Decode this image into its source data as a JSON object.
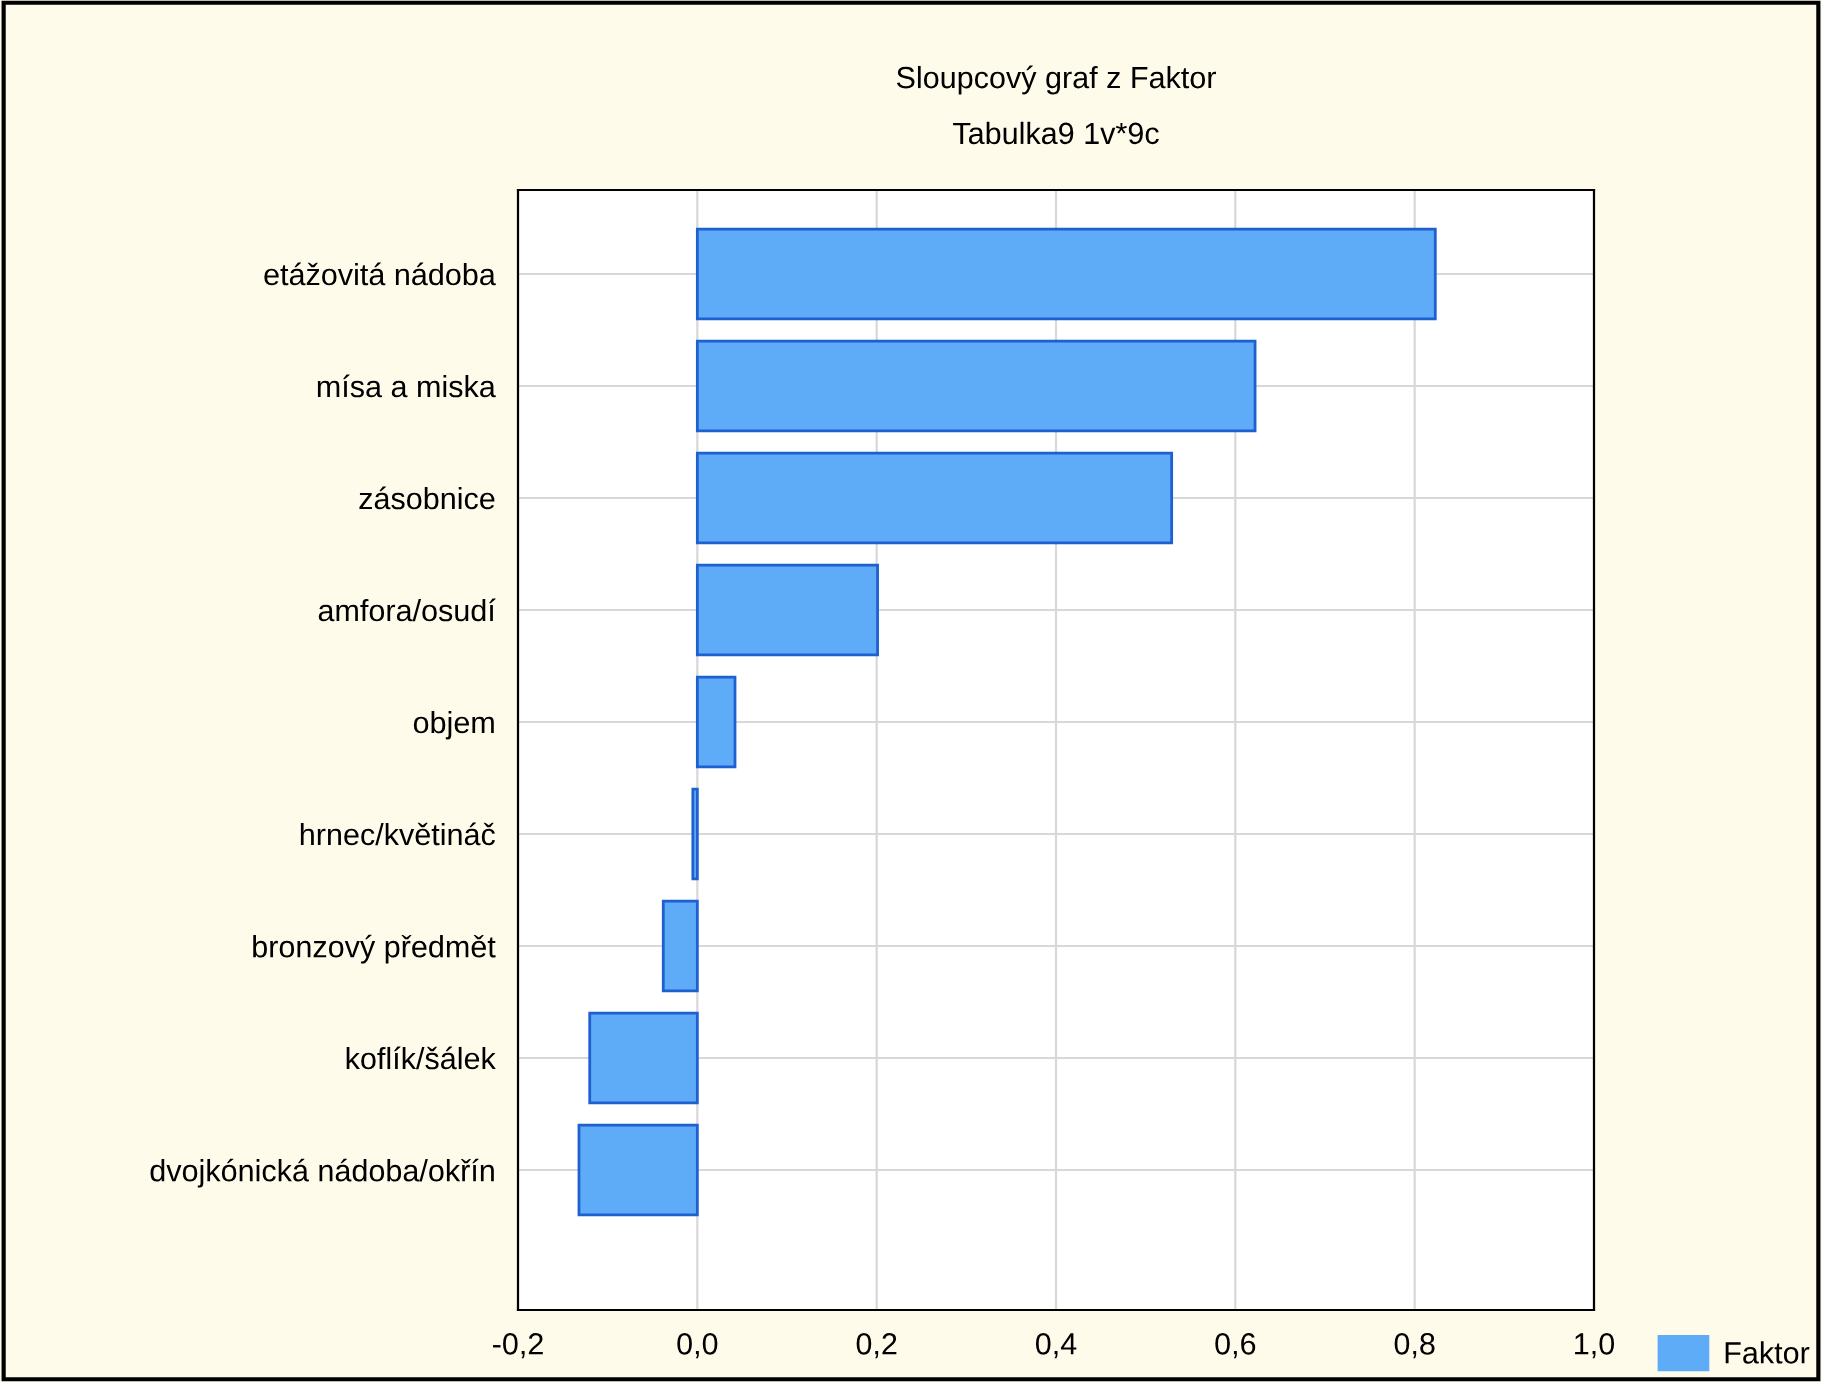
{
  "chart_data": {
    "type": "bar",
    "orientation": "horizontal",
    "title": "Sloupcový graf z Faktor",
    "subtitle": "Tabulka9 1v*9c",
    "categories": [
      "etážovitá nádoba",
      "mísa a miska",
      "zásobnice",
      "amfora/osudí",
      "objem",
      "hrnec/květináč",
      "bronzový předmět",
      "koflík/šálek",
      "dvojkónická nádoba/okřín"
    ],
    "series": [
      {
        "name": "Faktor",
        "color": "#5eacf7",
        "values": [
          0.823,
          0.622,
          0.529,
          0.201,
          0.042,
          -0.005,
          -0.038,
          -0.12,
          -0.132
        ]
      }
    ],
    "xlim": [
      -0.2,
      1.0
    ],
    "xticks": [
      {
        "value": -0.2,
        "label": "-0,2"
      },
      {
        "value": 0.0,
        "label": "0,0"
      },
      {
        "value": 0.2,
        "label": "0,2"
      },
      {
        "value": 0.4,
        "label": "0,4"
      },
      {
        "value": 0.6,
        "label": "0,6"
      },
      {
        "value": 0.8,
        "label": "0,8"
      },
      {
        "value": 1.0,
        "label": "1,0"
      }
    ],
    "grid": true,
    "legend": "bottom right"
  }
}
